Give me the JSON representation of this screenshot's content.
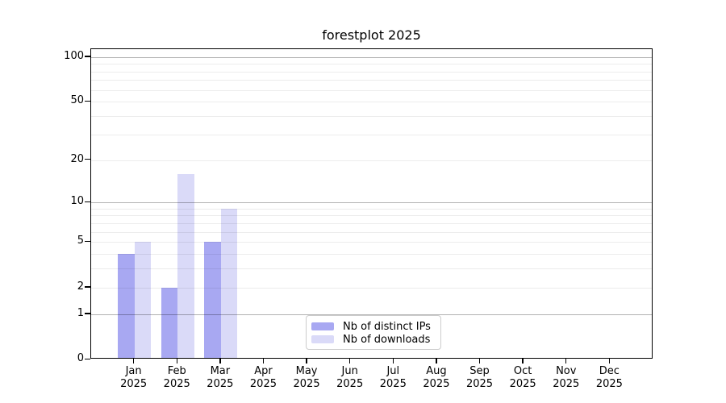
{
  "figure": {
    "background": "#ffffff"
  },
  "chart_data": {
    "type": "bar",
    "title": "forestplot 2025",
    "x_months": [
      "Jan",
      "Feb",
      "Mar",
      "Apr",
      "May",
      "Jun",
      "Jul",
      "Aug",
      "Sep",
      "Oct",
      "Nov",
      "Dec"
    ],
    "x_year": "2025",
    "series": [
      {
        "name": "Nb of distinct IPs",
        "color": "#a8a8f2",
        "values": [
          4,
          2,
          5,
          0,
          0,
          0,
          0,
          0,
          0,
          0,
          0,
          0
        ]
      },
      {
        "name": "Nb of downloads",
        "color": "#dadaf8",
        "values": [
          5,
          16,
          9,
          0,
          0,
          0,
          0,
          0,
          0,
          0,
          0,
          0
        ]
      }
    ],
    "yscale": "log1p",
    "ylim": [
      0,
      113
    ],
    "yticks": [
      0,
      1,
      2,
      5,
      10,
      20,
      50,
      100
    ],
    "grid": {
      "major_ticks": [
        1,
        10,
        100
      ],
      "minor_ticks": [
        2,
        3,
        4,
        5,
        6,
        7,
        8,
        9,
        20,
        30,
        40,
        50,
        60,
        70,
        80,
        90
      ],
      "major_color": "#b2b2b2",
      "minor_color": "#ececec"
    },
    "legend_position": "lower center"
  }
}
